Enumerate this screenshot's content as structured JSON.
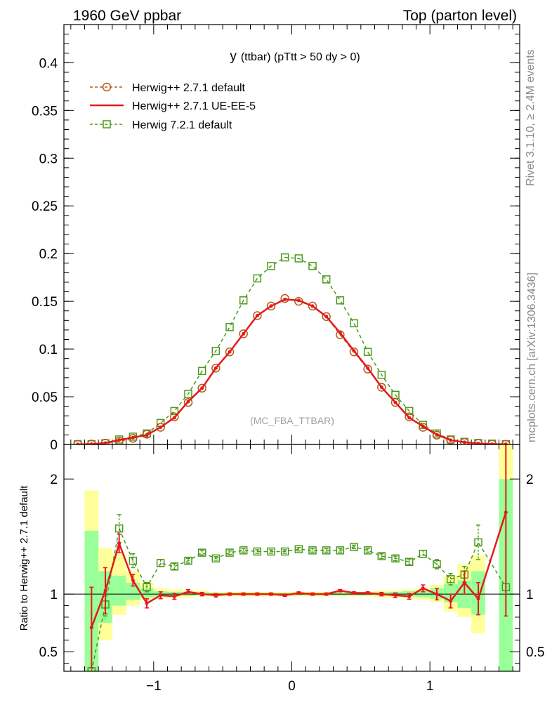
{
  "header": {
    "left": "1960 GeV ppbar",
    "right": "Top (parton level)"
  },
  "plot_title": {
    "main": "y",
    "sub": "(ttbar) (pTtt > 50 dy > 0)"
  },
  "watermark": "(MC_FBA_TTBAR)",
  "side_labels": {
    "rivet": "Rivet 3.1.10, ≥ 2.4M events",
    "mcplots": "mcplots.cern.ch [arXiv:1306.3436]"
  },
  "ratio_ylabel": "Ratio to Herwig++ 2.7.1 default",
  "colors": {
    "herwig_default": "#b35a1b",
    "ue_ee_5": "#e41a1c",
    "herwig7": "#4a9a1a",
    "band_yellow": "#ffff99",
    "band_green": "#99ff99"
  },
  "chart_data": [
    {
      "type": "line",
      "panel": "main",
      "xlim": [
        -1.65,
        1.65
      ],
      "ylim": [
        0,
        0.44
      ],
      "yticks": [
        0,
        0.05,
        0.1,
        0.15,
        0.2,
        0.25,
        0.3,
        0.35,
        0.4
      ],
      "ytick_labels": [
        "0",
        "0.05",
        "0.1",
        "0.15",
        "0.2",
        "0.25",
        "0.3",
        "0.35",
        "0.4"
      ],
      "legend_position": "top-left",
      "x": [
        -1.55,
        -1.45,
        -1.35,
        -1.25,
        -1.15,
        -1.05,
        -0.95,
        -0.85,
        -0.75,
        -0.65,
        -0.55,
        -0.45,
        -0.35,
        -0.25,
        -0.15,
        -0.05,
        0.05,
        0.15,
        0.25,
        0.35,
        0.45,
        0.55,
        0.65,
        0.75,
        0.85,
        0.95,
        1.05,
        1.15,
        1.25,
        1.35,
        1.45,
        1.55
      ],
      "series": [
        {
          "name": "Herwig++ 2.7.1 default",
          "style": "dashed-circle",
          "values": [
            0.0002,
            0.0005,
            0.0014,
            0.0033,
            0.0064,
            0.0108,
            0.018,
            0.029,
            0.044,
            0.059,
            0.08,
            0.097,
            0.116,
            0.135,
            0.145,
            0.153,
            0.15,
            0.145,
            0.134,
            0.115,
            0.097,
            0.079,
            0.06,
            0.044,
            0.029,
            0.018,
            0.0098,
            0.0047,
            0.0021,
            0.0011,
            0.0004,
            0.0002
          ]
        },
        {
          "name": "Herwig++ 2.7.1 UE-EE-5",
          "style": "solid",
          "values": [
            0.0001,
            0.0004,
            0.0015,
            0.0047,
            0.0072,
            0.0099,
            0.018,
            0.028,
            0.045,
            0.059,
            0.08,
            0.097,
            0.116,
            0.135,
            0.145,
            0.152,
            0.151,
            0.145,
            0.134,
            0.117,
            0.098,
            0.08,
            0.06,
            0.044,
            0.028,
            0.019,
            0.0103,
            0.0045,
            0.0023,
            0.001,
            0.0003,
            0.0003
          ]
        },
        {
          "name": "Herwig 7.2.1 default",
          "style": "dashed-square",
          "values": [
            0.0001,
            0.0002,
            0.0013,
            0.0052,
            0.0082,
            0.0115,
            0.0225,
            0.035,
            0.053,
            0.077,
            0.098,
            0.123,
            0.151,
            0.174,
            0.187,
            0.196,
            0.195,
            0.187,
            0.173,
            0.151,
            0.127,
            0.097,
            0.073,
            0.052,
            0.035,
            0.0205,
            0.0115,
            0.0052,
            0.0027,
            0.0015,
            0.0008,
            0.0002
          ]
        }
      ]
    },
    {
      "type": "line",
      "panel": "ratio",
      "xlim": [
        -1.65,
        1.65
      ],
      "ylim": [
        0.33,
        2.3
      ],
      "yticks": [
        0.5,
        1,
        2
      ],
      "ytick_labels": [
        "0.5",
        "1",
        "2"
      ],
      "xticks": [
        -1,
        0,
        1
      ],
      "xtick_labels": [
        "−1",
        "0",
        "1"
      ],
      "reference_line": 1,
      "x": [
        -1.45,
        -1.35,
        -1.25,
        -1.15,
        -1.05,
        -0.95,
        -0.85,
        -0.75,
        -0.65,
        -0.55,
        -0.45,
        -0.35,
        -0.25,
        -0.15,
        -0.05,
        0.05,
        0.15,
        0.25,
        0.35,
        0.45,
        0.55,
        0.65,
        0.75,
        0.85,
        0.95,
        1.05,
        1.15,
        1.25,
        1.35,
        1.55
      ],
      "bands": {
        "x_edges": [
          -1.5,
          -1.4,
          -1.3,
          -1.2,
          -1.1,
          -1.0,
          -0.9,
          -0.8,
          -0.7,
          -0.6,
          -0.5,
          -0.4,
          -0.3,
          -0.2,
          -0.1,
          0.0,
          0.1,
          0.2,
          0.3,
          0.4,
          0.5,
          0.6,
          0.7,
          0.8,
          0.9,
          1.0,
          1.1,
          1.2,
          1.3,
          1.4,
          1.5,
          1.6
        ],
        "yellow_lo": [
          0.3,
          0.6,
          0.82,
          0.9,
          0.95,
          0.96,
          0.97,
          0.97,
          0.98,
          0.98,
          0.98,
          0.98,
          0.98,
          0.98,
          0.98,
          0.98,
          0.98,
          0.98,
          0.98,
          0.98,
          0.98,
          0.97,
          0.97,
          0.96,
          0.95,
          0.93,
          0.85,
          0.8,
          0.66,
          1.0,
          0.3
        ],
        "yellow_hi": [
          1.9,
          1.4,
          1.35,
          1.2,
          1.1,
          1.05,
          1.04,
          1.03,
          1.03,
          1.02,
          1.02,
          1.02,
          1.02,
          1.02,
          1.02,
          1.02,
          1.02,
          1.02,
          1.02,
          1.02,
          1.02,
          1.03,
          1.03,
          1.04,
          1.05,
          1.08,
          1.16,
          1.26,
          1.34,
          1.0,
          2.3
        ],
        "green_lo": [
          0.3,
          0.75,
          0.9,
          0.95,
          0.97,
          0.98,
          0.985,
          0.985,
          0.99,
          0.99,
          0.99,
          0.99,
          0.99,
          0.99,
          0.99,
          0.99,
          0.99,
          0.99,
          0.99,
          0.99,
          0.99,
          0.985,
          0.985,
          0.98,
          0.975,
          0.96,
          0.93,
          0.88,
          0.82,
          1.0,
          0.3
        ],
        "green_hi": [
          1.55,
          1.2,
          1.16,
          1.1,
          1.05,
          1.025,
          1.02,
          1.02,
          1.015,
          1.01,
          1.01,
          1.01,
          1.01,
          1.01,
          1.01,
          1.01,
          1.01,
          1.01,
          1.01,
          1.01,
          1.01,
          1.015,
          1.02,
          1.025,
          1.03,
          1.05,
          1.09,
          1.12,
          1.2,
          1.0,
          2.0
        ]
      },
      "series": [
        {
          "name": "Herwig++ 2.7.1 UE-EE-5",
          "style": "solid",
          "values": [
            0.71,
            1.03,
            1.44,
            1.12,
            0.92,
            0.99,
            0.98,
            1.02,
            1.0,
            0.99,
            1.0,
            1.0,
            1.0,
            1.0,
            0.99,
            1.01,
            1.0,
            1.0,
            1.03,
            1.01,
            1.01,
            1.0,
            0.99,
            0.98,
            1.05,
            1.0,
            0.94,
            1.1,
            0.96,
            1.71
          ],
          "errors": [
            0.35,
            0.2,
            0.08,
            0.05,
            0.04,
            0.03,
            0.025,
            0.02,
            0.015,
            0.015,
            0.01,
            0.01,
            0.01,
            0.01,
            0.01,
            0.01,
            0.01,
            0.01,
            0.01,
            0.01,
            0.01,
            0.015,
            0.02,
            0.025,
            0.03,
            0.05,
            0.06,
            0.1,
            0.14,
            0.9
          ]
        },
        {
          "name": "Herwig 7.2.1 default",
          "style": "dashed-square",
          "values": [
            0.33,
            0.91,
            1.57,
            1.29,
            1.06,
            1.27,
            1.24,
            1.29,
            1.36,
            1.31,
            1.36,
            1.38,
            1.37,
            1.37,
            1.37,
            1.39,
            1.38,
            1.38,
            1.38,
            1.41,
            1.38,
            1.33,
            1.31,
            1.28,
            1.35,
            1.26,
            1.13,
            1.17,
            1.45,
            1.06
          ],
          "errors": [
            0,
            0.1,
            0.12,
            0.06,
            0.04,
            0.03,
            0.025,
            0.02,
            0.02,
            0.015,
            0.015,
            0.015,
            0.015,
            0.015,
            0.015,
            0.015,
            0.015,
            0.015,
            0.015,
            0.015,
            0.015,
            0.02,
            0.02,
            0.025,
            0.03,
            0.04,
            0.05,
            0.07,
            0.15,
            0
          ]
        }
      ]
    }
  ]
}
